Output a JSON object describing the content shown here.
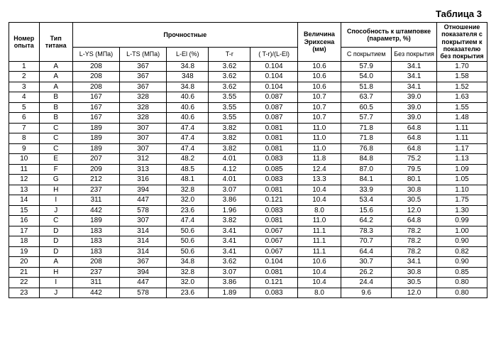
{
  "caption": "Таблица 3",
  "headers": {
    "exp_no": "Номер опыта",
    "ti_type": "Тип титана",
    "strength_group": "Прочностные",
    "l_ys": "L-YS (МПа)",
    "l_ts": "L-TS (МПа)",
    "l_el": "L-El (%)",
    "t_r": "T-r",
    "ratio": "( T-r)/(L-El)",
    "erichsen": "Величина Эрихсена (мм)",
    "stamp_group": "Способность к штамповке (параметр, %)",
    "with_coat": "С покрытием",
    "no_coat": "Без покрытия",
    "rel": "Отношение показателя с покрытием к показателю без покрытия"
  },
  "rows": [
    {
      "n": "1",
      "t": "A",
      "lys": "208",
      "lts": "367",
      "lel": "34.8",
      "tr": "3.62",
      "r": "0.104",
      "er": "10.6",
      "wc": "57.9",
      "nc": "34.1",
      "rel": "1.70"
    },
    {
      "n": "2",
      "t": "A",
      "lys": "208",
      "lts": "367",
      "lel": "348",
      "tr": "3.62",
      "r": "0.104",
      "er": "10.6",
      "wc": "54.0",
      "nc": "34.1",
      "rel": "1.58"
    },
    {
      "n": "3",
      "t": "A",
      "lys": "208",
      "lts": "367",
      "lel": "34.8",
      "tr": "3.62",
      "r": "0.104",
      "er": "10.6",
      "wc": "51.8",
      "nc": "34.1",
      "rel": "1.52"
    },
    {
      "n": "4",
      "t": "B",
      "lys": "167",
      "lts": "328",
      "lel": "40.6",
      "tr": "3.55",
      "r": "0.087",
      "er": "10.7",
      "wc": "63.7",
      "nc": "39.0",
      "rel": "1.63"
    },
    {
      "n": "5",
      "t": "B",
      "lys": "167",
      "lts": "328",
      "lel": "40.6",
      "tr": "3.55",
      "r": "0.087",
      "er": "10.7",
      "wc": "60.5",
      "nc": "39.0",
      "rel": "1.55"
    },
    {
      "n": "6",
      "t": "B",
      "lys": "167",
      "lts": "328",
      "lel": "40.6",
      "tr": "3.55",
      "r": "0.087",
      "er": "10.7",
      "wc": "57.7",
      "nc": "39.0",
      "rel": "1.48"
    },
    {
      "n": "7",
      "t": "C",
      "lys": "189",
      "lts": "307",
      "lel": "47.4",
      "tr": "3.82",
      "r": "0.081",
      "er": "11.0",
      "wc": "71.8",
      "nc": "64.8",
      "rel": "1.11"
    },
    {
      "n": "8",
      "t": "C",
      "lys": "189",
      "lts": "307",
      "lel": "47.4",
      "tr": "3.82",
      "r": "0.081",
      "er": "11.0",
      "wc": "71.8",
      "nc": "64.8",
      "rel": "1.11"
    },
    {
      "n": "9",
      "t": "C",
      "lys": "189",
      "lts": "307",
      "lel": "47.4",
      "tr": "3.82",
      "r": "0.081",
      "er": "11.0",
      "wc": "76.8",
      "nc": "64.8",
      "rel": "1.17"
    },
    {
      "n": "10",
      "t": "E",
      "lys": "207",
      "lts": "312",
      "lel": "48.2",
      "tr": "4.01",
      "r": "0.083",
      "er": "11.8",
      "wc": "84.8",
      "nc": "75.2",
      "rel": "1.13"
    },
    {
      "n": "11",
      "t": "F",
      "lys": "209",
      "lts": "313",
      "lel": "48.5",
      "tr": "4.12",
      "r": "0.085",
      "er": "12.4",
      "wc": "87.0",
      "nc": "79.5",
      "rel": "1.09"
    },
    {
      "n": "12",
      "t": "G",
      "lys": "212",
      "lts": "316",
      "lel": "48.1",
      "tr": "4.01",
      "r": "0.083",
      "er": "13.3",
      "wc": "84.1",
      "nc": "80.1",
      "rel": "1.05"
    },
    {
      "n": "13",
      "t": "H",
      "lys": "237",
      "lts": "394",
      "lel": "32.8",
      "tr": "3.07",
      "r": "0.081",
      "er": "10.4",
      "wc": "33.9",
      "nc": "30.8",
      "rel": "1.10"
    },
    {
      "n": "14",
      "t": "I",
      "lys": "311",
      "lts": "447",
      "lel": "32.0",
      "tr": "3.86",
      "r": "0.121",
      "er": "10.4",
      "wc": "53.4",
      "nc": "30.5",
      "rel": "1.75"
    },
    {
      "n": "15",
      "t": "J",
      "lys": "442",
      "lts": "578",
      "lel": "23.6",
      "tr": "1.96",
      "r": "0.083",
      "er": "8.0",
      "wc": "15.6",
      "nc": "12.0",
      "rel": "1.30"
    },
    {
      "n": "16",
      "t": "C",
      "lys": "189",
      "lts": "307",
      "lel": "47.4",
      "tr": "3.82",
      "r": "0.081",
      "er": "11.0",
      "wc": "64.2",
      "nc": "64.8",
      "rel": "0.99"
    },
    {
      "n": "17",
      "t": "D",
      "lys": "183",
      "lts": "314",
      "lel": "50.6",
      "tr": "3.41",
      "r": "0.067",
      "er": "11.1",
      "wc": "78.3",
      "nc": "78.2",
      "rel": "1.00"
    },
    {
      "n": "18",
      "t": "D",
      "lys": "183",
      "lts": "314",
      "lel": "50.6",
      "tr": "3.41",
      "r": "0.067",
      "er": "11.1",
      "wc": "70.7",
      "nc": "78.2",
      "rel": "0.90"
    },
    {
      "n": "19",
      "t": "D",
      "lys": "183",
      "lts": "314",
      "lel": "50.6",
      "tr": "3.41",
      "r": "0.067",
      "er": "11.1",
      "wc": "64.4",
      "nc": "78.2",
      "rel": "0.82"
    },
    {
      "n": "20",
      "t": "A",
      "lys": "208",
      "lts": "367",
      "lel": "34.8",
      "tr": "3.62",
      "r": "0.104",
      "er": "10.6",
      "wc": "30.7",
      "nc": "34.1",
      "rel": "0.90"
    },
    {
      "n": "21",
      "t": "H",
      "lys": "237",
      "lts": "394",
      "lel": "32.8",
      "tr": "3.07",
      "r": "0.081",
      "er": "10.4",
      "wc": "26.2",
      "nc": "30.8",
      "rel": "0.85"
    },
    {
      "n": "22",
      "t": "I",
      "lys": "311",
      "lts": "447",
      "lel": "32.0",
      "tr": "3.86",
      "r": "0.121",
      "er": "10.4",
      "wc": "24.4",
      "nc": "30.5",
      "rel": "0.80"
    },
    {
      "n": "23",
      "t": "J",
      "lys": "442",
      "lts": "578",
      "lel": "23.6",
      "tr": "1.89",
      "r": "0.083",
      "er": "8.0",
      "wc": "9.6",
      "nc": "12.0",
      "rel": "0.80"
    }
  ]
}
